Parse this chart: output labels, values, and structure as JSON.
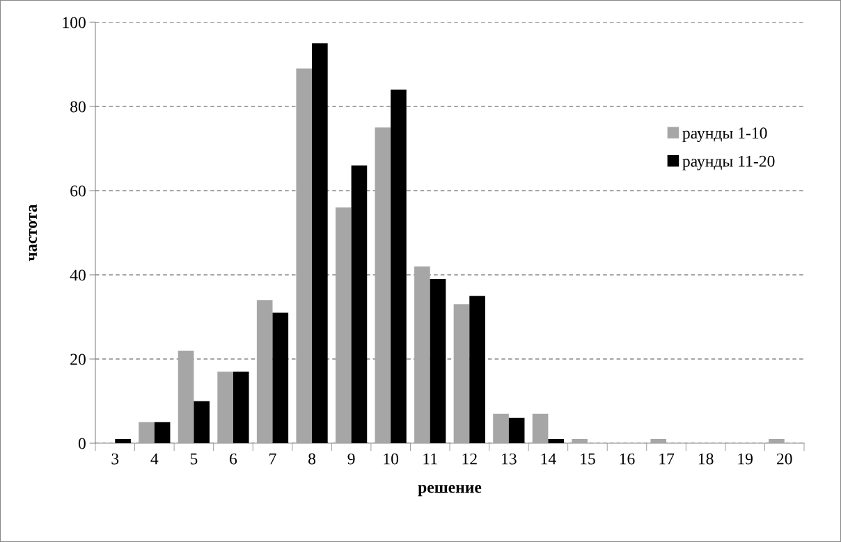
{
  "chart_data": {
    "type": "bar",
    "xlabel": "решение",
    "ylabel": "частота",
    "categories": [
      "3",
      "4",
      "5",
      "6",
      "7",
      "8",
      "9",
      "10",
      "11",
      "12",
      "13",
      "14",
      "15",
      "16",
      "17",
      "18",
      "19",
      "20"
    ],
    "series": [
      {
        "name": "раунды 1-10",
        "color": "#a6a6a6",
        "values": [
          0,
          5,
          22,
          17,
          34,
          89,
          56,
          75,
          42,
          33,
          7,
          7,
          1,
          0,
          1,
          0,
          0,
          1
        ]
      },
      {
        "name": "раунды 11-20",
        "color": "#000000",
        "values": [
          1,
          5,
          10,
          17,
          31,
          95,
          66,
          84,
          39,
          35,
          6,
          1,
          0,
          0,
          0,
          0,
          0,
          0
        ]
      }
    ],
    "ylim": [
      0,
      100
    ],
    "yticks": [
      0,
      20,
      40,
      60,
      80,
      100
    ],
    "grid": "y",
    "legend": "right"
  }
}
